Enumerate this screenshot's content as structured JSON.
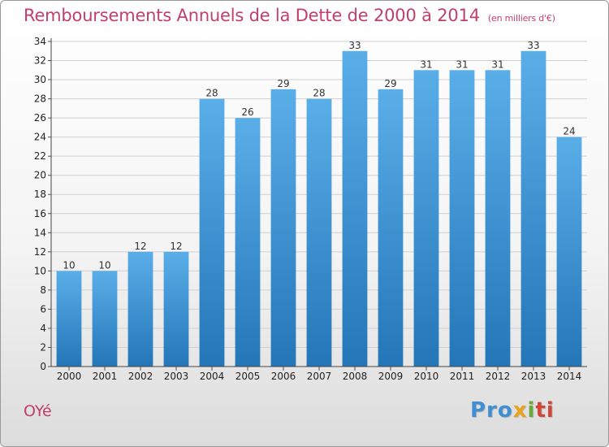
{
  "chart_data": {
    "type": "bar",
    "title": "Remboursements Annuels de la Dette de 2000 à 2014",
    "unit_note": "(en milliers d'€)",
    "categories": [
      "2000",
      "2001",
      "2002",
      "2003",
      "2004",
      "2005",
      "2006",
      "2007",
      "2008",
      "2009",
      "2010",
      "2011",
      "2012",
      "2013",
      "2014"
    ],
    "values": [
      10,
      10,
      12,
      12,
      28,
      26,
      29,
      28,
      33,
      29,
      31,
      31,
      31,
      33,
      24
    ],
    "ylim": [
      0,
      34
    ],
    "yticks": [
      0,
      2,
      4,
      6,
      8,
      10,
      12,
      14,
      16,
      18,
      20,
      22,
      24,
      26,
      28,
      30,
      32,
      34
    ],
    "grid": true,
    "xlabel": "",
    "ylabel": ""
  },
  "commune": "OYé",
  "logo": {
    "parts": [
      "Pro",
      "x",
      "i",
      "ti"
    ]
  },
  "colors": {
    "bar_top": "#5aaee8",
    "bar_bottom": "#2476b8",
    "title": "#c0406a",
    "grid": "#d0d0d0"
  }
}
